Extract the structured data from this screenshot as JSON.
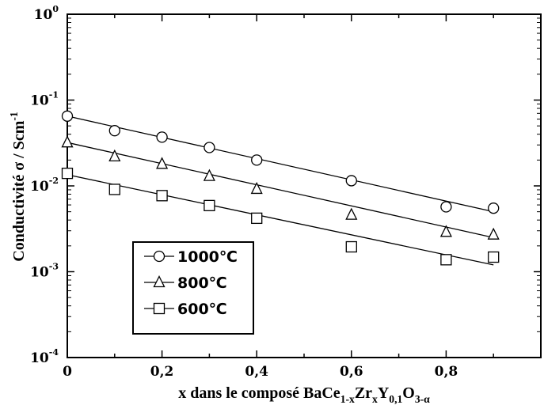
{
  "chart_data": {
    "type": "scatter",
    "ylog": true,
    "xlim": [
      0,
      1.0
    ],
    "ylim": [
      0.0001,
      1
    ],
    "xticks": [
      {
        "v": 0,
        "label": "0"
      },
      {
        "v": 0.2,
        "label": "0,2"
      },
      {
        "v": 0.4,
        "label": "0,4"
      },
      {
        "v": 0.6,
        "label": "0,6"
      },
      {
        "v": 0.8,
        "label": "0,8"
      }
    ],
    "yticks": [
      {
        "v": 1,
        "base": "10",
        "exp": "0"
      },
      {
        "v": 0.1,
        "base": "10",
        "exp": "-1"
      },
      {
        "v": 0.01,
        "base": "10",
        "exp": "-2"
      },
      {
        "v": 0.001,
        "base": "10",
        "exp": "-3"
      },
      {
        "v": 0.0001,
        "base": "10",
        "exp": "-4"
      }
    ],
    "xlabel": {
      "parts": [
        {
          "t": "x dans le composé BaCe",
          "s": "n"
        },
        {
          "t": "1-x",
          "s": "sub"
        },
        {
          "t": "Zr",
          "s": "n"
        },
        {
          "t": "x",
          "s": "sub"
        },
        {
          "t": "Y",
          "s": "n"
        },
        {
          "t": "0,1",
          "s": "sub"
        },
        {
          "t": "O",
          "s": "n"
        },
        {
          "t": "3-α",
          "s": "sub"
        }
      ]
    },
    "ylabel": {
      "parts": [
        {
          "t": "Conductivité σ / Scm",
          "s": "n"
        },
        {
          "t": "-1",
          "s": "sup"
        }
      ]
    },
    "series": [
      {
        "name": "1000℃",
        "marker": "circle",
        "x": [
          0,
          0.1,
          0.2,
          0.3,
          0.4,
          0.6,
          0.8,
          0.9
        ],
        "y": [
          0.065,
          0.044,
          0.037,
          0.028,
          0.02,
          0.0115,
          0.0057,
          0.0055
        ],
        "fit": [
          [
            0,
            0.065
          ],
          [
            0.9,
            0.005
          ]
        ]
      },
      {
        "name": "800℃",
        "marker": "triangle",
        "x": [
          0,
          0.1,
          0.2,
          0.3,
          0.4,
          0.6,
          0.8,
          0.9
        ],
        "y": [
          0.032,
          0.022,
          0.018,
          0.013,
          0.0092,
          0.0046,
          0.0029,
          0.0027
        ],
        "fit": [
          [
            0,
            0.032
          ],
          [
            0.9,
            0.0025
          ]
        ]
      },
      {
        "name": "600℃",
        "marker": "square",
        "x": [
          0,
          0.1,
          0.2,
          0.3,
          0.4,
          0.6,
          0.8,
          0.9
        ],
        "y": [
          0.014,
          0.0091,
          0.0077,
          0.0059,
          0.0042,
          0.00195,
          0.00138,
          0.00148
        ],
        "fit": [
          [
            0,
            0.0135
          ],
          [
            0.9,
            0.0012
          ]
        ]
      }
    ]
  }
}
